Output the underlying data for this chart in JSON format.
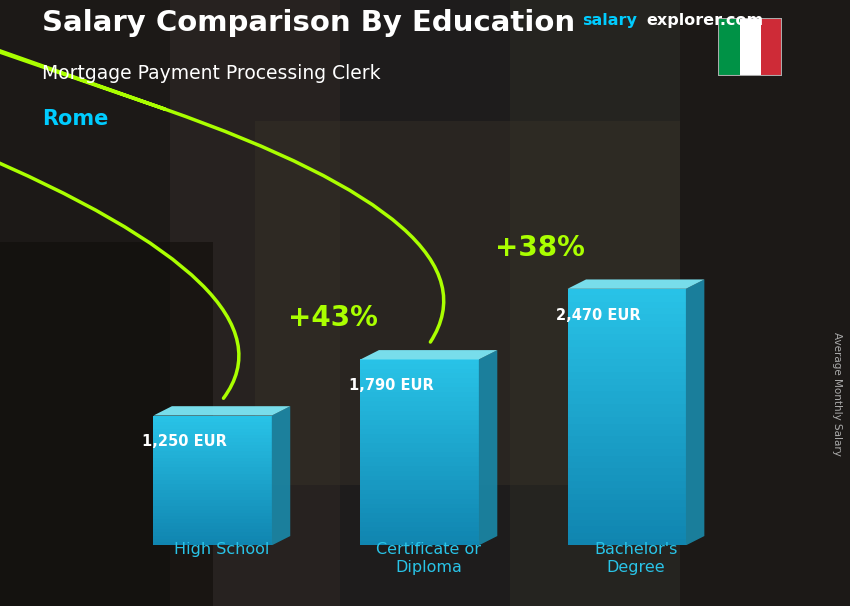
{
  "title": "Salary Comparison By Education",
  "subtitle": "Mortgage Payment Processing Clerk",
  "city": "Rome",
  "watermark": "salaryexplorer.com",
  "ylabel": "Average Monthly Salary",
  "categories": [
    "High School",
    "Certificate or\nDiploma",
    "Bachelor's\nDegree"
  ],
  "values": [
    1250,
    1790,
    2470
  ],
  "labels": [
    "1,250 EUR",
    "1,790 EUR",
    "2,470 EUR"
  ],
  "pct_changes": [
    "+43%",
    "+38%"
  ],
  "bar_color_face": "#29c4e8",
  "bar_color_top": "#7de8f7",
  "bar_color_side": "#1a8aaa",
  "title_color": "#ffffff",
  "subtitle_color": "#ffffff",
  "city_color": "#00ccff",
  "watermark_color": "#00ccff",
  "label_color": "#ffffff",
  "pct_color": "#aaff00",
  "xlabel_color": "#29c4e8",
  "bg_color": "#3a3a4a",
  "figsize": [
    8.5,
    6.06
  ],
  "dpi": 100
}
